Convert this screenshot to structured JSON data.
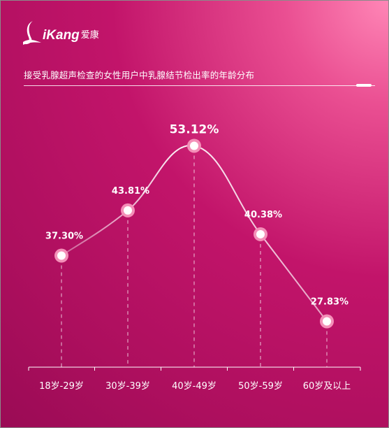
{
  "brand": {
    "logo_text": "iKang",
    "logo_cn": "爱康"
  },
  "title": "接受乳腺超声检查的女性用户中乳腺结节检出率的年龄分布",
  "colors": {
    "background_main": "#c2146a",
    "background_highlight": "#ff86b6",
    "point_fill": "#ffffff",
    "point_ring": "#f48fb8",
    "line": "#ffffff"
  },
  "chart_data": {
    "type": "line",
    "categories": [
      "18岁-29岁",
      "30岁-39岁",
      "40岁-49岁",
      "50岁-59岁",
      "60岁及以上"
    ],
    "series": [
      {
        "values": [
          37.3,
          43.81,
          53.12,
          40.38,
          27.83
        ]
      }
    ],
    "data_labels": [
      "37.30%",
      "43.81%",
      "53.12%",
      "40.38%",
      "27.83%"
    ],
    "unit": "%",
    "grid": false,
    "legend": "none"
  }
}
